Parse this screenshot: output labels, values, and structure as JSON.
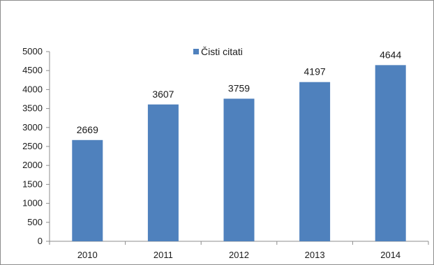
{
  "chart_data": {
    "type": "bar",
    "categories": [
      "2010",
      "2011",
      "2012",
      "2013",
      "2014"
    ],
    "series": [
      {
        "name": "Čisti citati",
        "values": [
          2669,
          3607,
          3759,
          4197,
          4644
        ],
        "color": "#4f81bd"
      }
    ],
    "data_labels": [
      "2669",
      "3607",
      "3759",
      "4197",
      "4644"
    ],
    "y_ticks": [
      "0",
      "500",
      "1000",
      "1500",
      "2000",
      "2500",
      "3000",
      "3500",
      "4000",
      "4500",
      "5000"
    ],
    "ylim": [
      0,
      5000
    ],
    "grid": false,
    "legend_position": "top-center"
  }
}
